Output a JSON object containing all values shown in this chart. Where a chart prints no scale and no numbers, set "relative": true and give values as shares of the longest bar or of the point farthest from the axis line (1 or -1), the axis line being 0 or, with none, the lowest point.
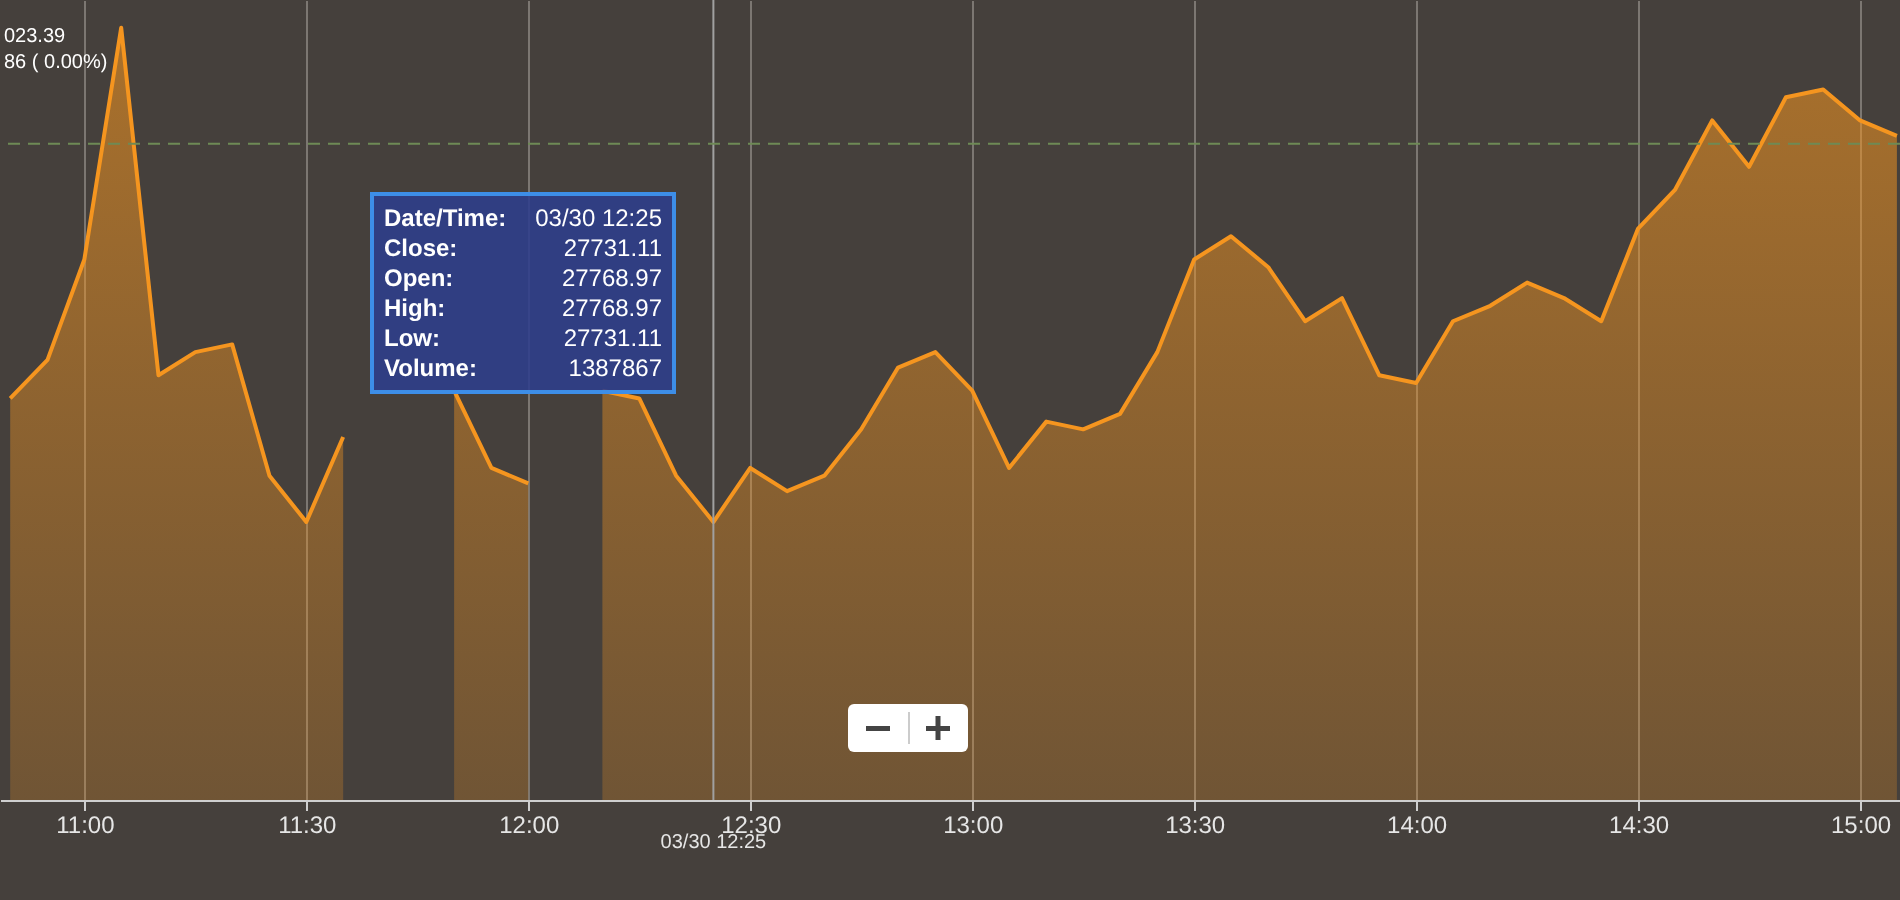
{
  "chart_data": {
    "type": "area",
    "relative": true,
    "x": [
      10.833,
      10.917,
      11,
      11.083,
      11.167,
      11.25,
      11.333,
      11.417,
      11.5,
      11.583,
      11.667,
      11.75,
      11.833,
      11.917,
      12,
      12.083,
      12.167,
      12.25,
      12.333,
      12.417,
      12.5,
      12.583,
      12.667,
      12.75,
      12.833,
      12.917,
      13,
      13.083,
      13.167,
      13.25,
      13.333,
      13.417,
      13.5,
      13.583,
      13.667,
      13.75,
      13.833,
      13.917,
      14,
      14.083,
      14.167,
      14.25,
      14.333,
      14.417,
      14.5,
      14.583,
      14.667,
      14.75,
      14.833,
      14.917,
      15,
      15.083
    ],
    "series": [
      {
        "color": "#f5951f",
        "values": [
          0.52,
          0.57,
          0.7,
          1,
          0.55,
          0.58,
          0.59,
          0.42,
          0.36,
          0.47,
          null,
          null,
          0.53,
          0.43,
          0.41,
          null,
          0.53,
          0.52,
          0.42,
          0.36,
          0.43,
          0.4,
          0.42,
          0.48,
          0.56,
          0.58,
          0.53,
          0.43,
          0.49,
          0.48,
          0.5,
          0.58,
          0.7,
          0.73,
          0.69,
          0.62,
          0.65,
          0.55,
          0.54,
          0.62,
          0.64,
          0.67,
          0.65,
          0.62,
          0.74,
          0.79,
          0.88,
          0.82,
          0.91,
          0.92,
          0.88,
          0.86
        ]
      }
    ],
    "xlim": [
      10.81,
      15.09
    ],
    "xticks": [
      {
        "value": 11,
        "label": "11:00"
      },
      {
        "value": 11.5,
        "label": "11:30"
      },
      {
        "value": 12,
        "label": "12:00"
      },
      {
        "value": 12.5,
        "label": "12:30"
      },
      {
        "value": 13,
        "label": "13:00"
      },
      {
        "value": 13.5,
        "label": "13:30"
      },
      {
        "value": 14,
        "label": "14:00"
      },
      {
        "value": 14.5,
        "label": "14:30"
      },
      {
        "value": 15,
        "label": "15:00"
      }
    ],
    "grid": "x",
    "ref_lines": [
      {
        "axis": "x",
        "value": 12.417,
        "label": "03/30 12:25",
        "color": "#a0a0a0"
      },
      {
        "axis": "y",
        "value": 0.85,
        "color": "#6e8a55",
        "line_style": "dashed"
      }
    ],
    "annotations": [
      "023.39",
      "86 ( 0.00%)",
      "Date/Time: 03/30 12:25",
      "Close: 27731.11",
      "Open: 27768.97",
      "High: 27768.97",
      "Low: 27731.11",
      "Volume: 1387867"
    ]
  }
}
